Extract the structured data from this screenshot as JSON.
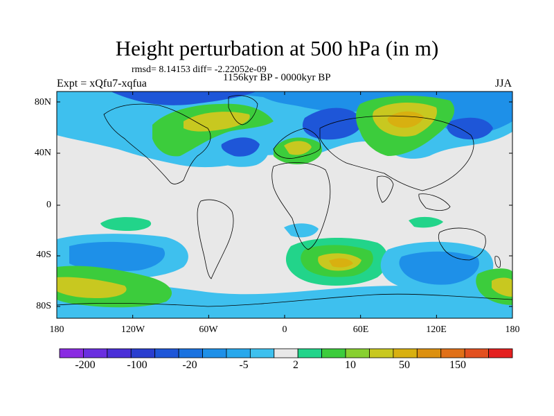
{
  "title": "Height perturbation at 500 hPa (in m)",
  "stats": "rmsd= 8.14153 diff= -2.22052e-09",
  "period": "1156kyr BP - 0000kyr BP",
  "experiment": "Expt = xQfu7-xqfua",
  "season": "JJA",
  "lat_labels": [
    "80N",
    "40N",
    "0",
    "40S",
    "80S"
  ],
  "lon_labels": [
    "180",
    "120W",
    "60W",
    "0",
    "60E",
    "120E",
    "180"
  ],
  "colorbar": {
    "labels": [
      "-200",
      "-100",
      "-20",
      "-5",
      "2",
      "10",
      "50",
      "150"
    ],
    "colors": [
      "#8a2be2",
      "#6a2ee0",
      "#4a2fd8",
      "#2a3ed0",
      "#1e56d8",
      "#1a72e0",
      "#1e90e8",
      "#28a8ec",
      "#3ec0ee",
      "#e8e8e8",
      "#22d48a",
      "#3ccc3c",
      "#88d030",
      "#c8c820",
      "#d8b010",
      "#dc9010",
      "#e07018",
      "#e25020",
      "#e42020"
    ]
  },
  "colors": {
    "neutral": "#e8e8e8",
    "strong_negative": "#1e56d8",
    "negative": "#1e90e8",
    "weak_negative": "#3ec0ee",
    "weak_positive": "#22d48a",
    "positive": "#3ccc3c",
    "strong_positive": "#c8c820",
    "peak_positive": "#d8b010"
  }
}
